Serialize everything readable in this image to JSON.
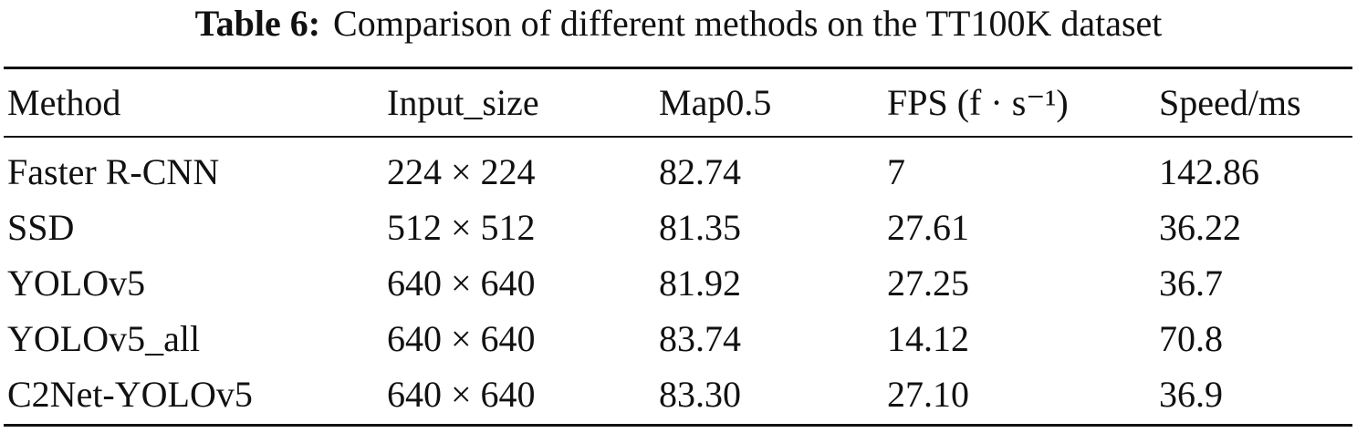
{
  "caption": {
    "label": "Table 6:",
    "text": "Comparison of different methods on the TT100K dataset"
  },
  "table": {
    "header": [
      "Method",
      "Input_size",
      "Map0.5",
      "FPS (f · s⁻¹)",
      "Speed/ms"
    ],
    "rows": [
      [
        "Faster R-CNN",
        "224 × 224",
        "82.74",
        "7",
        "142.86"
      ],
      [
        "SSD",
        "512 × 512",
        "81.35",
        "27.61",
        "36.22"
      ],
      [
        "YOLOv5",
        "640 × 640",
        "81.92",
        "27.25",
        "36.7"
      ],
      [
        "YOLOv5_all",
        "640 × 640",
        "83.74",
        "14.12",
        "70.8"
      ],
      [
        "C2Net-YOLOv5",
        "640 × 640",
        "83.30",
        "27.10",
        "36.9"
      ]
    ]
  }
}
